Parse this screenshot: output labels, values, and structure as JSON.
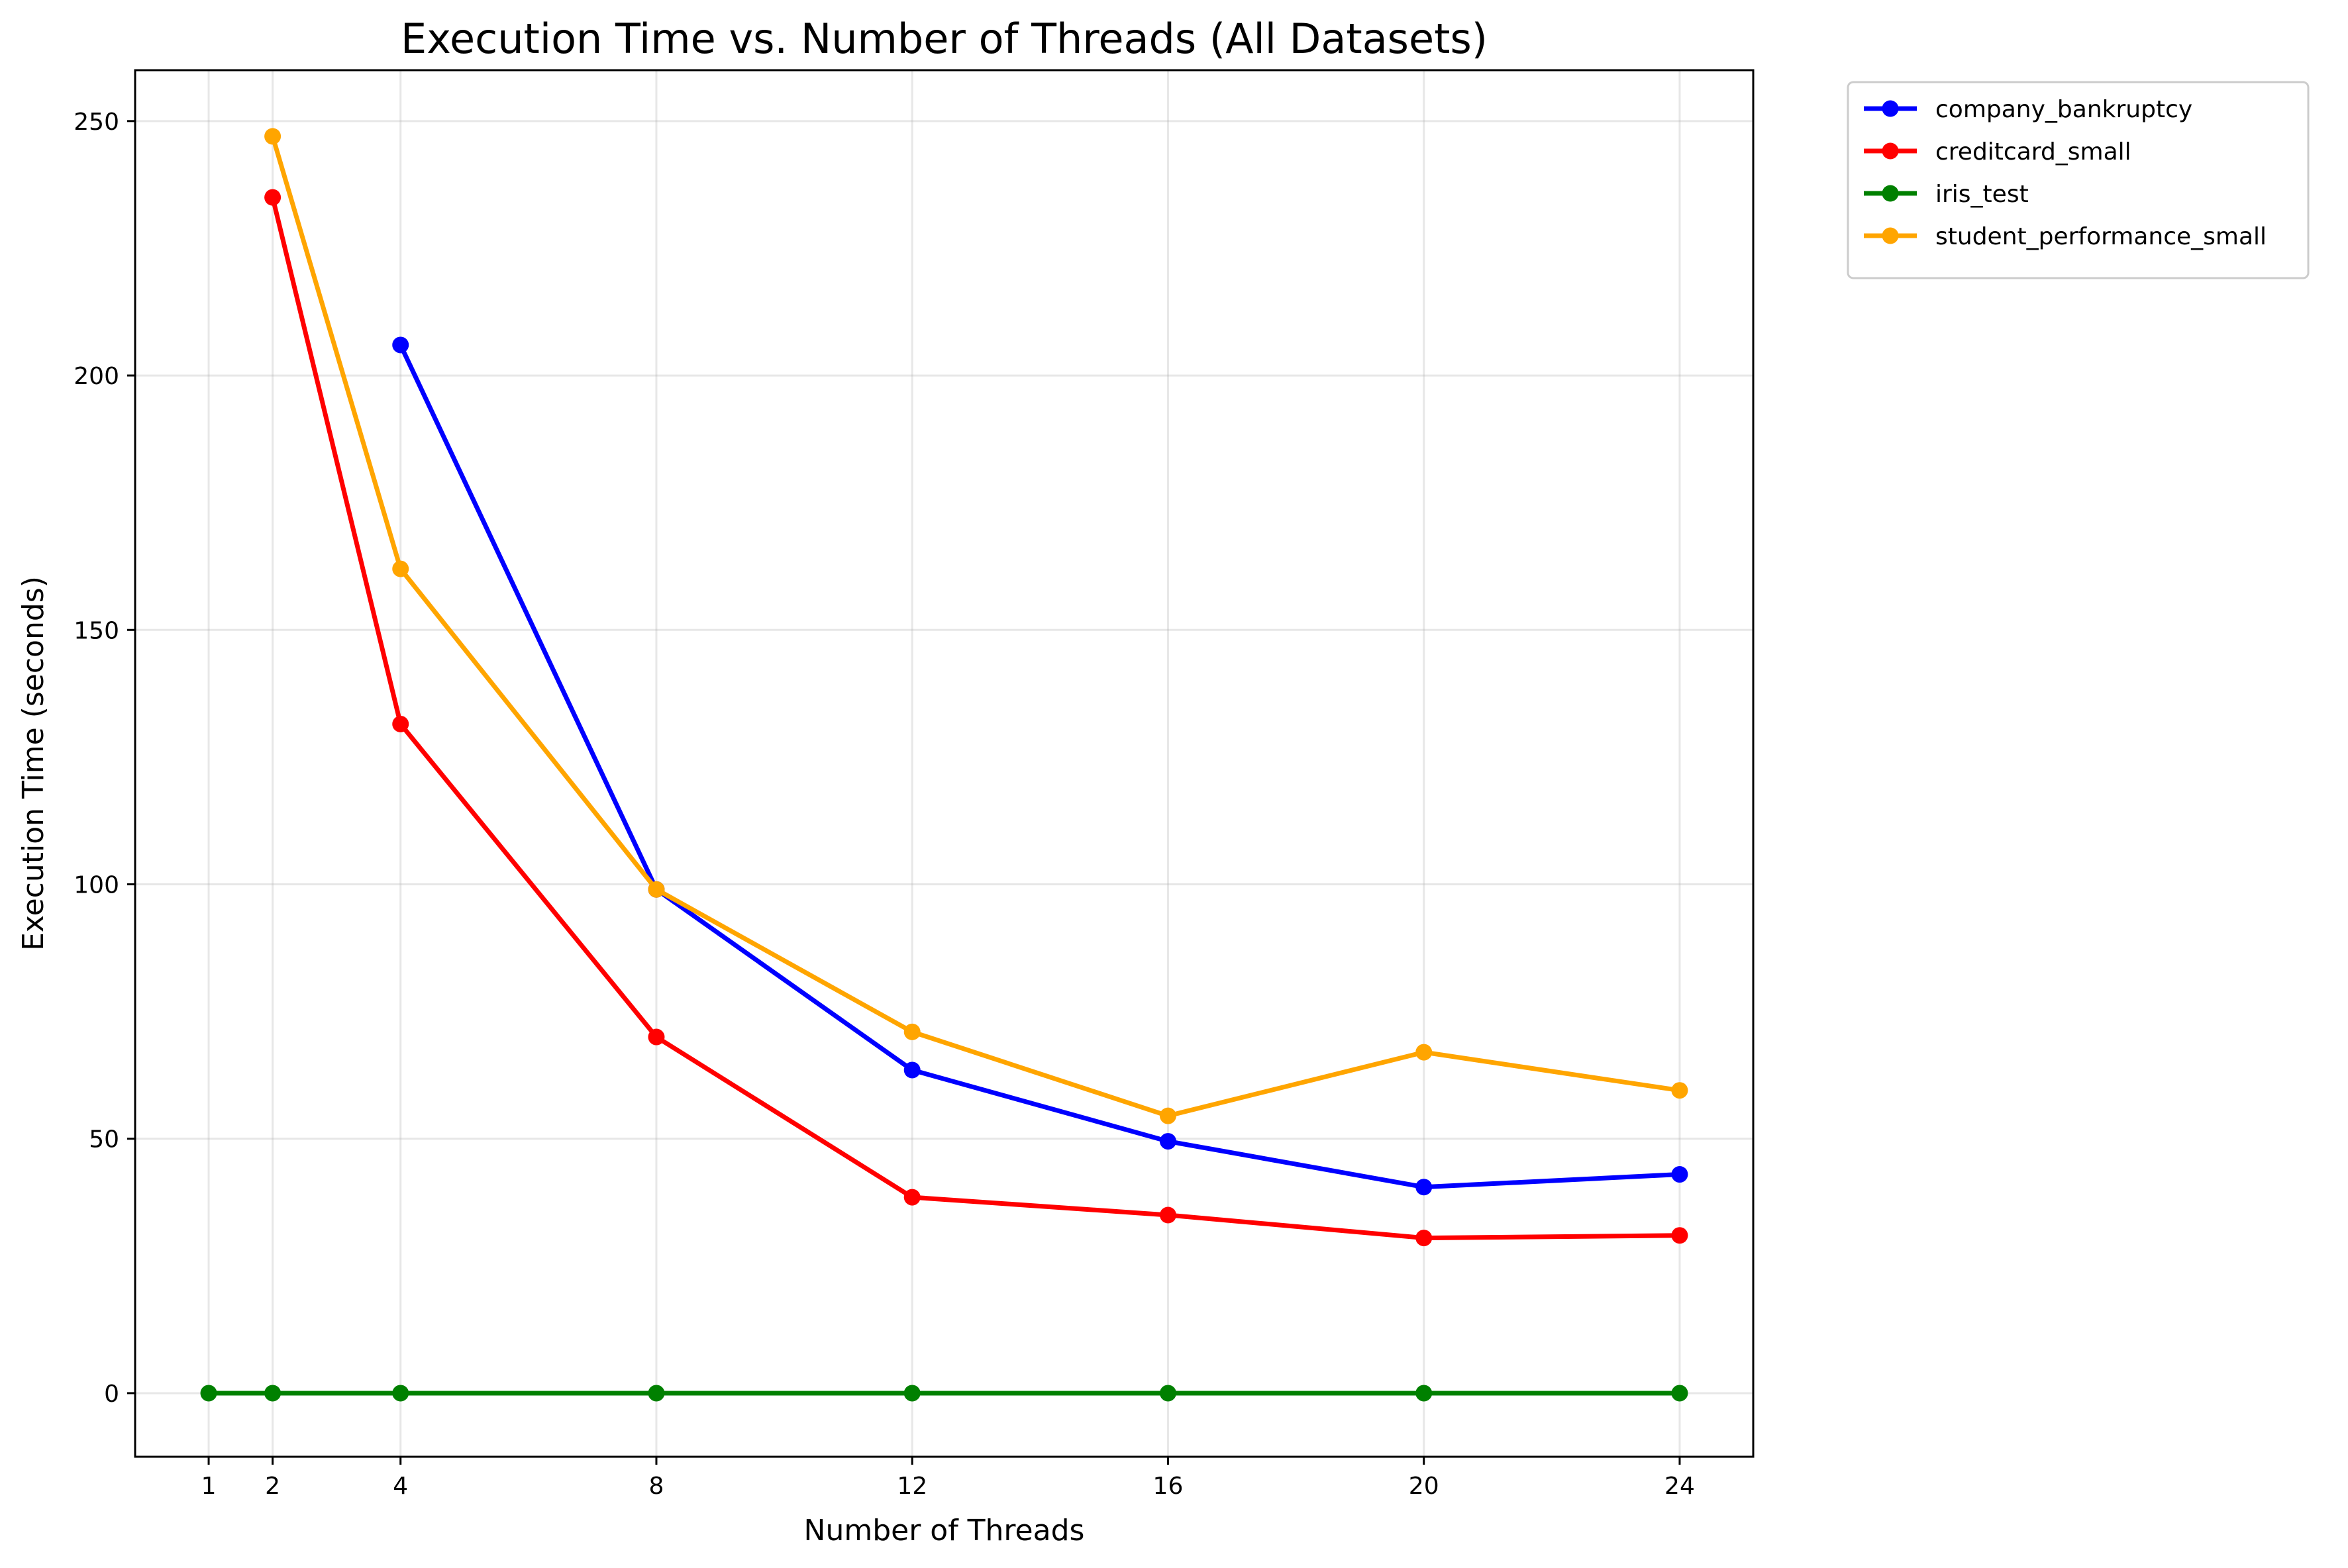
{
  "chart_data": {
    "type": "line",
    "title": "Execution Time vs. Number of Threads (All Datasets)",
    "xlabel": "Number of Threads",
    "ylabel": "Execution Time (seconds)",
    "x_ticks": [
      1,
      2,
      4,
      8,
      12,
      16,
      20,
      24
    ],
    "y_ticks": [
      0,
      50,
      100,
      150,
      200,
      250
    ],
    "xlim": [
      -0.15,
      25.15
    ],
    "ylim": [
      -12.5,
      260
    ],
    "grid": true,
    "legend_position": "outside-top-right",
    "series": [
      {
        "name": "company_bankruptcy",
        "color": "#0000ff",
        "x": [
          4,
          8,
          12,
          16,
          20,
          24
        ],
        "y": [
          206,
          99,
          63.5,
          49.5,
          40.5,
          43
        ]
      },
      {
        "name": "creditcard_small",
        "color": "#ff0000",
        "x": [
          2,
          4,
          8,
          12,
          16,
          20,
          24
        ],
        "y": [
          235,
          131.5,
          70,
          38.5,
          35,
          30.5,
          31
        ]
      },
      {
        "name": "iris_test",
        "color": "#008000",
        "x": [
          1,
          2,
          4,
          8,
          12,
          16,
          20,
          24
        ],
        "y": [
          0,
          0,
          0,
          0,
          0,
          0,
          0,
          0
        ]
      },
      {
        "name": "student_performance_small",
        "color": "#ffa500",
        "x": [
          2,
          4,
          8,
          12,
          16,
          20,
          24
        ],
        "y": [
          247,
          162,
          99,
          71,
          54.5,
          67,
          59.5
        ]
      }
    ]
  }
}
